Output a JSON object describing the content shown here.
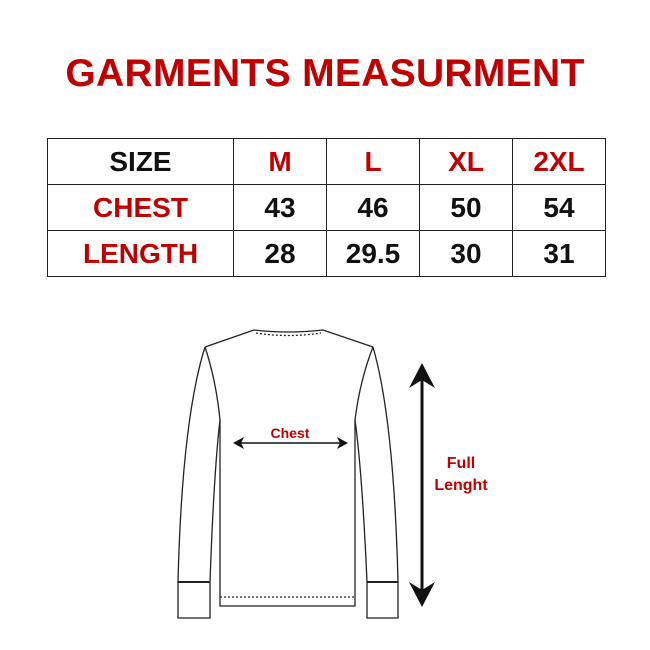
{
  "title": "GARMENTS MEASURMENT",
  "table": {
    "header": {
      "label": "SIZE",
      "sizes": [
        "M",
        "L",
        "XL",
        "2XL"
      ]
    },
    "rows": [
      {
        "label": "CHEST",
        "values": [
          "43",
          "46",
          "50",
          "54"
        ]
      },
      {
        "label": "LENGTH",
        "values": [
          "28",
          "29.5",
          "30",
          "31"
        ]
      }
    ]
  },
  "diagram": {
    "chest_label": "Chest",
    "length_label_line1": "Full",
    "length_label_line2": "Lenght"
  },
  "colors": {
    "accent": "#c00000",
    "text": "#111111"
  }
}
